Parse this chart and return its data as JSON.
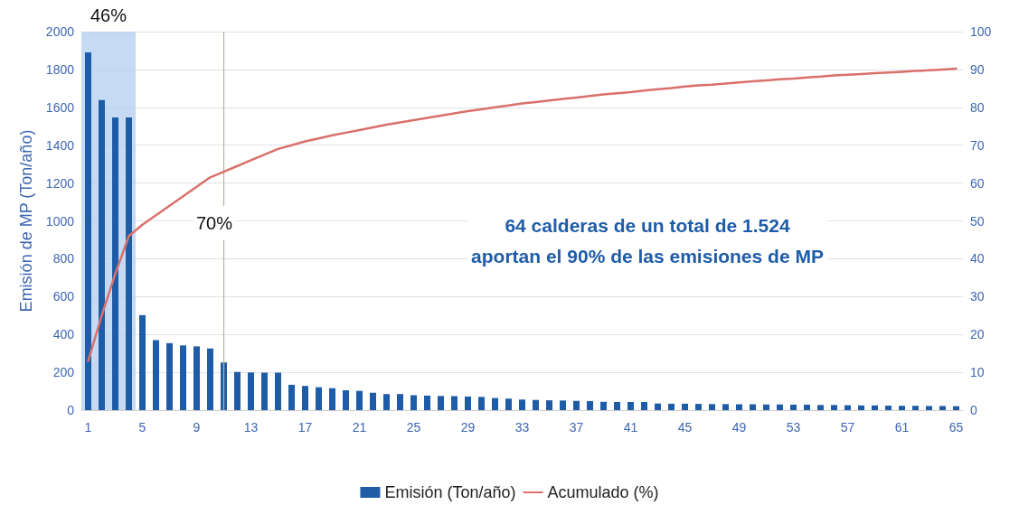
{
  "chart_data": {
    "type": "bar",
    "ylabel": "Emisión de MP (Ton/año)",
    "x": [
      1,
      2,
      3,
      4,
      5,
      6,
      7,
      8,
      9,
      10,
      11,
      12,
      13,
      14,
      15,
      16,
      17,
      18,
      19,
      20,
      21,
      22,
      23,
      24,
      25,
      26,
      27,
      28,
      29,
      30,
      31,
      32,
      33,
      34,
      35,
      36,
      37,
      38,
      39,
      40,
      41,
      42,
      43,
      44,
      45,
      46,
      47,
      48,
      49,
      50,
      51,
      52,
      53,
      54,
      55,
      56,
      57,
      58,
      59,
      60,
      61,
      62,
      63,
      64,
      65
    ],
    "xlim": [
      0.5,
      65.5
    ],
    "xticks": [
      1,
      5,
      9,
      13,
      17,
      21,
      25,
      29,
      33,
      37,
      41,
      45,
      49,
      53,
      57,
      61,
      65
    ],
    "ylim": [
      0,
      2000
    ],
    "yticks": [
      0,
      200,
      400,
      600,
      800,
      1000,
      1200,
      1400,
      1600,
      1800,
      2000
    ],
    "y2lim": [
      0,
      100
    ],
    "y2ticks": [
      0,
      10,
      20,
      30,
      40,
      50,
      60,
      70,
      80,
      90,
      100
    ],
    "series": [
      {
        "name": "Emisión (Ton/año)",
        "color": "#1f5ca8",
        "values": [
          1890,
          1638,
          1547,
          1547,
          502,
          370,
          354,
          342,
          337,
          326,
          252,
          202,
          199,
          198,
          198,
          134,
          128,
          121,
          116,
          105,
          102,
          92,
          85,
          85,
          79,
          77,
          75,
          74,
          72,
          70,
          64,
          61,
          56,
          54,
          52,
          51,
          49,
          48,
          44,
          43,
          43,
          43,
          35,
          34,
          34,
          33,
          32,
          32,
          31,
          31,
          30,
          30,
          29,
          29,
          27,
          27,
          26,
          25,
          25,
          24,
          23,
          23,
          22,
          22,
          21
        ]
      },
      {
        "name": "Acumulado (%)",
        "type": "line",
        "axis": "y2",
        "color": "#d9706a",
        "marker": "none",
        "values": [
          13,
          25,
          36,
          46,
          49,
          51.5,
          54,
          56.5,
          59,
          61.5,
          63,
          64.5,
          66,
          67.5,
          69,
          70,
          71,
          71.8,
          72.6,
          73.3,
          74,
          74.7,
          75.4,
          76,
          76.6,
          77.2,
          77.8,
          78.4,
          79,
          79.5,
          80,
          80.5,
          81,
          81.4,
          81.8,
          82.2,
          82.6,
          83,
          83.4,
          83.7,
          84,
          84.4,
          84.8,
          85.1,
          85.5,
          85.8,
          86,
          86.3,
          86.6,
          86.9,
          87.1,
          87.4,
          87.6,
          87.9,
          88.1,
          88.4,
          88.6,
          88.8,
          89,
          89.2,
          89.4,
          89.6,
          89.8,
          90,
          90.2
        ]
      }
    ],
    "bands": [
      {
        "axis": "x",
        "from": 0.5,
        "to": 4.5,
        "label": "46%",
        "color": "#b3cdef"
      }
    ],
    "ref_lines": [
      {
        "axis": "x",
        "value": 11,
        "color": "#b5b596"
      }
    ],
    "annotations": [
      "70%",
      "64 calderas de un total de 1.524\naportan el 90% de las emisiones de MP"
    ],
    "grid": "y",
    "legend": "bottom"
  }
}
